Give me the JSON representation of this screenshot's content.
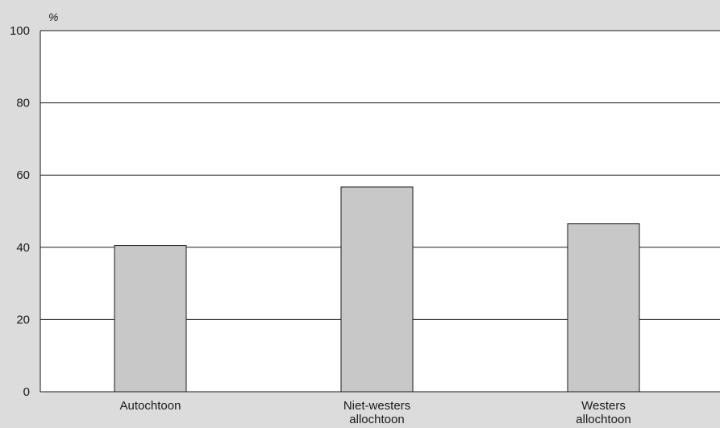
{
  "chart_data": {
    "type": "bar",
    "title": "",
    "ylabel": "%",
    "xlabel": "",
    "categories": [
      [
        "Autochtoon"
      ],
      [
        "Niet-westers",
        "allochtoon"
      ],
      [
        "Westers",
        "allochtoon"
      ]
    ],
    "values": [
      40.5,
      56.7,
      46.5
    ],
    "ylim": [
      0,
      100
    ],
    "yticks": [
      0,
      20,
      40,
      60,
      80,
      100
    ],
    "grid": true,
    "legend": "none",
    "colors": {
      "background": "#dcdcdc",
      "plot_area": "#ffffff",
      "bar_fill": "#c8c8c8",
      "bar_stroke": "#1a1a1a",
      "axis": "#1a1a1a"
    }
  }
}
